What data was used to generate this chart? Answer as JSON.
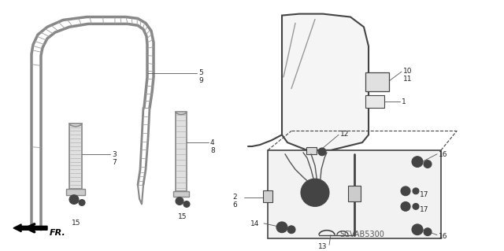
{
  "bg_color": "#ffffff",
  "fig_width": 6.4,
  "fig_height": 3.19,
  "diagram_code": "SCVAB5300",
  "line_color": "#444444",
  "text_color": "#222222",
  "label_fontsize": 6.5,
  "code_fontsize": 7,
  "sash_color": "#888888",
  "hatch_color": "#999999",
  "glass_fill": "#f5f5f5",
  "regulator_fill": "#f0f0f0"
}
